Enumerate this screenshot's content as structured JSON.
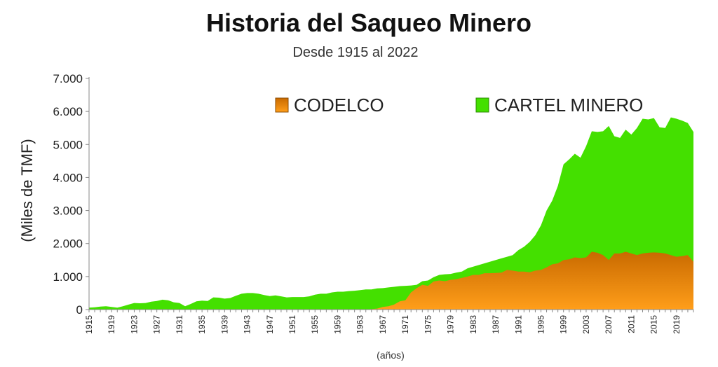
{
  "chart_data": {
    "type": "area",
    "title": "Historia del Saqueo Minero",
    "subtitle": "Desde 1915 al 2022",
    "ylabel": "(Miles de TMF)",
    "xlabel": "(años)",
    "ylim": [
      0,
      7000
    ],
    "xlim": [
      1915,
      2022
    ],
    "yticks": [
      "0",
      "1.000",
      "2.000",
      "3.000",
      "4.000",
      "5.000",
      "6.000",
      "7.000"
    ],
    "xticks": [
      1915,
      1919,
      1923,
      1927,
      1931,
      1935,
      1939,
      1943,
      1947,
      1951,
      1955,
      1959,
      1963,
      1967,
      1971,
      1975,
      1979,
      1983,
      1987,
      1991,
      1995,
      1999,
      2003,
      2007,
      2011,
      2015,
      2019
    ],
    "stacked": true,
    "grid": false,
    "legend_position": "top-right",
    "series": [
      {
        "name": "CODELCO",
        "color": "#e68a00",
        "points": [
          [
            1915,
            0
          ],
          [
            1964,
            0
          ],
          [
            1966,
            30
          ],
          [
            1967,
            80
          ],
          [
            1968,
            100
          ],
          [
            1969,
            150
          ],
          [
            1970,
            250
          ],
          [
            1971,
            280
          ],
          [
            1972,
            520
          ],
          [
            1973,
            650
          ],
          [
            1974,
            750
          ],
          [
            1975,
            720
          ],
          [
            1976,
            850
          ],
          [
            1977,
            880
          ],
          [
            1978,
            860
          ],
          [
            1979,
            900
          ],
          [
            1980,
            920
          ],
          [
            1981,
            960
          ],
          [
            1982,
            1000
          ],
          [
            1983,
            1050
          ],
          [
            1984,
            1050
          ],
          [
            1985,
            1100
          ],
          [
            1986,
            1100
          ],
          [
            1987,
            1110
          ],
          [
            1988,
            1120
          ],
          [
            1989,
            1200
          ],
          [
            1990,
            1180
          ],
          [
            1991,
            1150
          ],
          [
            1992,
            1150
          ],
          [
            1993,
            1130
          ],
          [
            1994,
            1180
          ],
          [
            1995,
            1200
          ],
          [
            1996,
            1280
          ],
          [
            1997,
            1370
          ],
          [
            1998,
            1400
          ],
          [
            1999,
            1500
          ],
          [
            2000,
            1520
          ],
          [
            2001,
            1580
          ],
          [
            2002,
            1560
          ],
          [
            2003,
            1580
          ],
          [
            2004,
            1750
          ],
          [
            2005,
            1720
          ],
          [
            2006,
            1650
          ],
          [
            2007,
            1500
          ],
          [
            2008,
            1700
          ],
          [
            2009,
            1700
          ],
          [
            2010,
            1750
          ],
          [
            2011,
            1700
          ],
          [
            2012,
            1650
          ],
          [
            2013,
            1700
          ],
          [
            2014,
            1720
          ],
          [
            2015,
            1730
          ],
          [
            2016,
            1720
          ],
          [
            2017,
            1700
          ],
          [
            2018,
            1650
          ],
          [
            2019,
            1600
          ],
          [
            2020,
            1620
          ],
          [
            2021,
            1650
          ],
          [
            2022,
            1450
          ]
        ]
      },
      {
        "name": "CARTEL MINERO",
        "color": "#44e000",
        "total_points": [
          [
            1915,
            60
          ],
          [
            1916,
            70
          ],
          [
            1917,
            90
          ],
          [
            1918,
            100
          ],
          [
            1919,
            80
          ],
          [
            1920,
            60
          ],
          [
            1921,
            100
          ],
          [
            1922,
            150
          ],
          [
            1923,
            200
          ],
          [
            1924,
            190
          ],
          [
            1925,
            200
          ],
          [
            1926,
            240
          ],
          [
            1927,
            260
          ],
          [
            1928,
            300
          ],
          [
            1929,
            280
          ],
          [
            1930,
            220
          ],
          [
            1931,
            200
          ],
          [
            1932,
            100
          ],
          [
            1933,
            170
          ],
          [
            1934,
            250
          ],
          [
            1935,
            270
          ],
          [
            1936,
            260
          ],
          [
            1937,
            370
          ],
          [
            1938,
            360
          ],
          [
            1939,
            330
          ],
          [
            1940,
            350
          ],
          [
            1941,
            420
          ],
          [
            1942,
            480
          ],
          [
            1943,
            500
          ],
          [
            1944,
            500
          ],
          [
            1945,
            480
          ],
          [
            1946,
            440
          ],
          [
            1947,
            410
          ],
          [
            1948,
            430
          ],
          [
            1949,
            400
          ],
          [
            1950,
            370
          ],
          [
            1951,
            380
          ],
          [
            1952,
            380
          ],
          [
            1953,
            380
          ],
          [
            1954,
            400
          ],
          [
            1955,
            450
          ],
          [
            1956,
            480
          ],
          [
            1957,
            480
          ],
          [
            1958,
            520
          ],
          [
            1959,
            540
          ],
          [
            1960,
            540
          ],
          [
            1961,
            560
          ],
          [
            1962,
            570
          ],
          [
            1963,
            590
          ],
          [
            1964,
            610
          ],
          [
            1965,
            610
          ],
          [
            1966,
            640
          ],
          [
            1967,
            650
          ],
          [
            1968,
            670
          ],
          [
            1969,
            690
          ],
          [
            1970,
            710
          ],
          [
            1971,
            720
          ],
          [
            1972,
            730
          ],
          [
            1973,
            750
          ],
          [
            1974,
            860
          ],
          [
            1975,
            880
          ],
          [
            1976,
            980
          ],
          [
            1977,
            1050
          ],
          [
            1978,
            1070
          ],
          [
            1979,
            1080
          ],
          [
            1980,
            1120
          ],
          [
            1981,
            1150
          ],
          [
            1982,
            1250
          ],
          [
            1983,
            1300
          ],
          [
            1984,
            1350
          ],
          [
            1985,
            1400
          ],
          [
            1986,
            1450
          ],
          [
            1987,
            1500
          ],
          [
            1988,
            1550
          ],
          [
            1989,
            1600
          ],
          [
            1990,
            1650
          ],
          [
            1991,
            1800
          ],
          [
            1992,
            1900
          ],
          [
            1993,
            2050
          ],
          [
            1994,
            2250
          ],
          [
            1995,
            2550
          ],
          [
            1996,
            3000
          ],
          [
            1997,
            3300
          ],
          [
            1998,
            3750
          ],
          [
            1999,
            4400
          ],
          [
            2000,
            4550
          ],
          [
            2001,
            4720
          ],
          [
            2002,
            4600
          ],
          [
            2003,
            4950
          ],
          [
            2004,
            5400
          ],
          [
            2005,
            5380
          ],
          [
            2006,
            5400
          ],
          [
            2007,
            5560
          ],
          [
            2008,
            5250
          ],
          [
            2009,
            5200
          ],
          [
            2010,
            5450
          ],
          [
            2011,
            5300
          ],
          [
            2012,
            5500
          ],
          [
            2013,
            5780
          ],
          [
            2014,
            5760
          ],
          [
            2015,
            5800
          ],
          [
            2016,
            5520
          ],
          [
            2017,
            5500
          ],
          [
            2018,
            5820
          ],
          [
            2019,
            5780
          ],
          [
            2020,
            5720
          ],
          [
            2021,
            5650
          ],
          [
            2022,
            5380
          ]
        ]
      }
    ]
  }
}
